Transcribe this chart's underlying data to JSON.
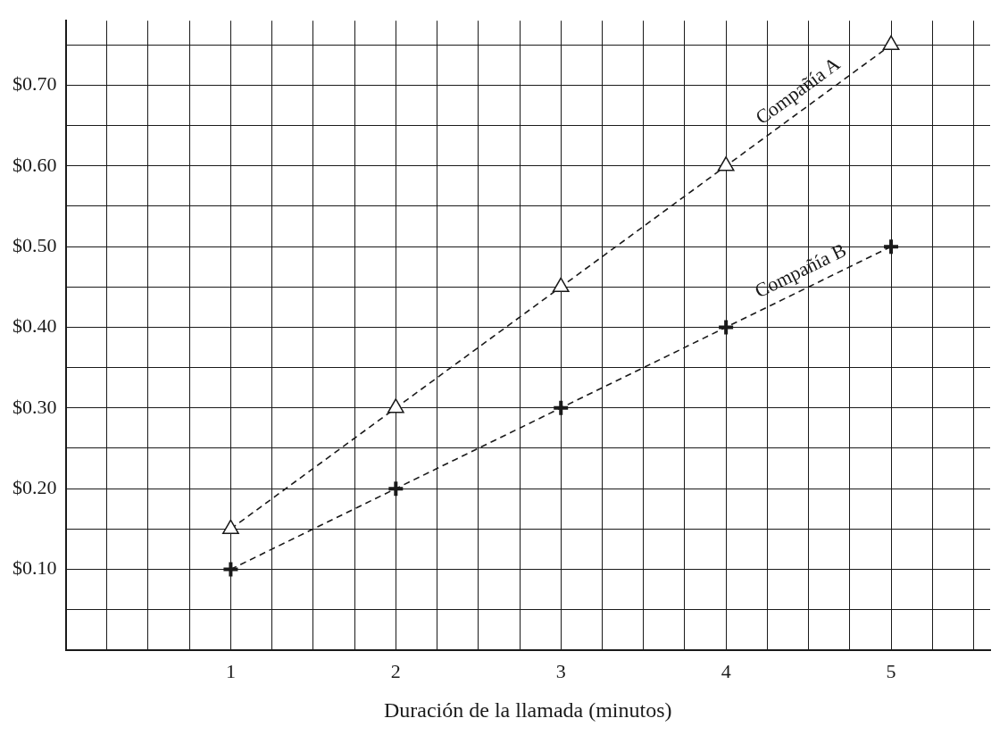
{
  "chart_data": {
    "type": "line",
    "xlabel": "Duración de la llamada (minutos)",
    "xlim": [
      0,
      5.6
    ],
    "ylim": [
      0,
      0.78
    ],
    "xticks": [
      {
        "value": 0.25,
        "label": null
      },
      {
        "value": 0.5,
        "label": null
      },
      {
        "value": 0.75,
        "label": null
      },
      1,
      {
        "value": 1.25,
        "label": null
      },
      {
        "value": 1.5,
        "label": null
      },
      {
        "value": 1.75,
        "label": null
      },
      2,
      {
        "value": 2.25,
        "label": null
      },
      {
        "value": 2.5,
        "label": null
      },
      {
        "value": 2.75,
        "label": null
      },
      3,
      {
        "value": 3.25,
        "label": null
      },
      {
        "value": 3.5,
        "label": null
      },
      {
        "value": 3.75,
        "label": null
      },
      4,
      {
        "value": 4.25,
        "label": null
      },
      {
        "value": 4.5,
        "label": null
      },
      {
        "value": 4.75,
        "label": null
      },
      5,
      {
        "value": 5.25,
        "label": null
      },
      {
        "value": 5.5,
        "label": null
      }
    ],
    "yticks": [
      {
        "value": 0.05,
        "label": null
      },
      {
        "value": 0.1,
        "label": "$0.10"
      },
      {
        "value": 0.15,
        "label": null
      },
      {
        "value": 0.2,
        "label": "$0.20"
      },
      {
        "value": 0.25,
        "label": null
      },
      {
        "value": 0.3,
        "label": "$0.30"
      },
      {
        "value": 0.35,
        "label": null
      },
      {
        "value": 0.4,
        "label": "$0.40"
      },
      {
        "value": 0.45,
        "label": null
      },
      {
        "value": 0.5,
        "label": "$0.50"
      },
      {
        "value": 0.55,
        "label": null
      },
      {
        "value": 0.6,
        "label": "$0.60"
      },
      {
        "value": 0.65,
        "label": null
      },
      {
        "value": 0.7,
        "label": "$0.70"
      },
      {
        "value": 0.75,
        "label": null
      }
    ],
    "grid": true,
    "legend": false,
    "line_style": "dashed",
    "x": [
      1,
      2,
      3,
      4,
      5
    ],
    "series": [
      {
        "name": "Compañía A",
        "color": "#1a1a1a",
        "marker": "triangle",
        "values": [
          0.15,
          0.3,
          0.45,
          0.6,
          0.75
        ]
      },
      {
        "name": "Compañía B",
        "color": "#1a1a1a",
        "marker": "cross",
        "values": [
          0.1,
          0.2,
          0.3,
          0.4,
          0.5
        ]
      }
    ]
  }
}
